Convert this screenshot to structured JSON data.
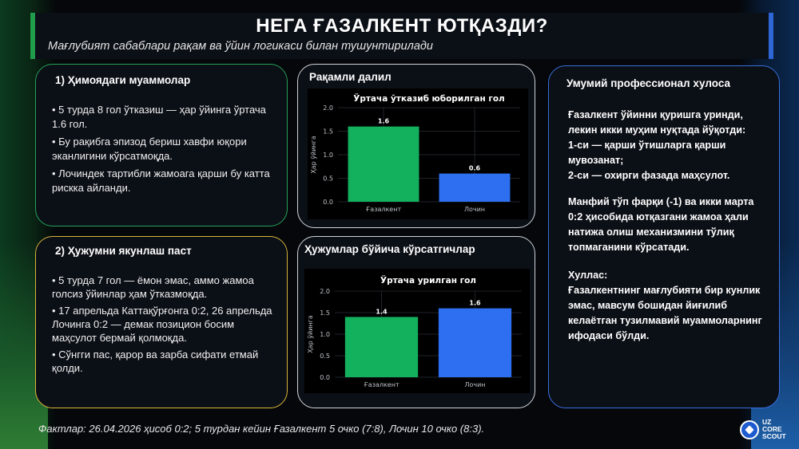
{
  "header": {
    "title": "НЕГА ҒАЗАЛКЕНТ ЮТҚАЗДИ?",
    "subtitle": "Мағлубият сабаблари рақам ва ўйин логикаси билан тушунтирилади"
  },
  "defense": {
    "heading": "1) Ҳимоядаги муаммолар",
    "bullets": [
      "• 5 турда 8 гол ўтказиш — ҳар ўйинга ўртача 1.6 гол.",
      "• Бу рақибга эпизод бериш хавфи юқори эканлигини кўрсатмоқда.",
      "• Лочиндек тартибли жамоага қарши бу катта рискка айланди."
    ]
  },
  "attack": {
    "heading": "2) Ҳужумни якунлаш паст",
    "bullets": [
      "• 5 турда 7 гол — ёмон эмас, аммо жамоа голсиз ўйинлар ҳам ўтказмоқда.",
      "• 17 апрельда Каттақўрғонга 0:2, 26 апрельда Лочинга 0:2 — демак позицион босим маҳсулот бермай қолмоқда.",
      "• Сўнгги пас, қарор ва зарба сифати етмай қолди."
    ]
  },
  "panels": {
    "numeric_title": "Рақамли далил",
    "attack_title": "Ҳужумлар бўйича кўрсатгичлар"
  },
  "chart_data": [
    {
      "type": "bar",
      "title": "Ўртача ўтказиб юборилган гол",
      "ylabel": "Ҳар ўйинга",
      "xlabel": "",
      "categories": [
        "Ғазалкент",
        "Лочин"
      ],
      "values": [
        1.6,
        0.6
      ],
      "value_labels": [
        "1.6",
        "0.6"
      ],
      "colors": [
        "#13b05e",
        "#2d6ff0"
      ],
      "ylim": [
        0,
        2.0
      ],
      "yticks": [
        "0.0",
        "0.5",
        "1.0",
        "1.5",
        "2.0"
      ],
      "grid": true
    },
    {
      "type": "bar",
      "title": "Ўртача урилган гол",
      "ylabel": "Ҳар ўйинга",
      "xlabel": "",
      "categories": [
        "Ғазалкент",
        "Лочин"
      ],
      "values": [
        1.4,
        1.6
      ],
      "value_labels": [
        "1.4",
        "1.6"
      ],
      "colors": [
        "#13b05e",
        "#2d6ff0"
      ],
      "ylim": [
        0,
        2.0
      ],
      "yticks": [
        "0.0",
        "0.5",
        "1.0",
        "1.5",
        "2.0"
      ],
      "grid": true
    }
  ],
  "summary": {
    "heading": "Умумий профессионал хулоса",
    "p1a": "Ғазалкент ўйинни қуришга уринди, лекин икки муҳим нуқтада йўқотди:",
    "p1b": "1-си — қарши ўтишларга қарши мувозанат;",
    "p1c": "2-си — охирги фазада маҳсулот.",
    "p2": "Манфий тўп фарқи (-1) ва икки марта 0:2 ҳисобида ютқазгани жамоа ҳали натижа олиш механизмини тўлиқ топмаганини кўрсатади.",
    "p3_heading": "Хуллас:",
    "p3": "Ғазалкентнинг мағлубияти бир кунлик эмас, мавсум бошидан йиғилиб келаётган тузилмавий муаммоларнинг ифодаси бўлди."
  },
  "footer": {
    "text": "Фактлар: 26.04.2026 ҳисоб 0:2; 5 турдан кейин Ғазалкент 5 очко (7:8), Лочин 10 очко (8:3)."
  },
  "logo": {
    "line1": "UZ",
    "line2": "CORE",
    "line3": "SCOUT"
  }
}
